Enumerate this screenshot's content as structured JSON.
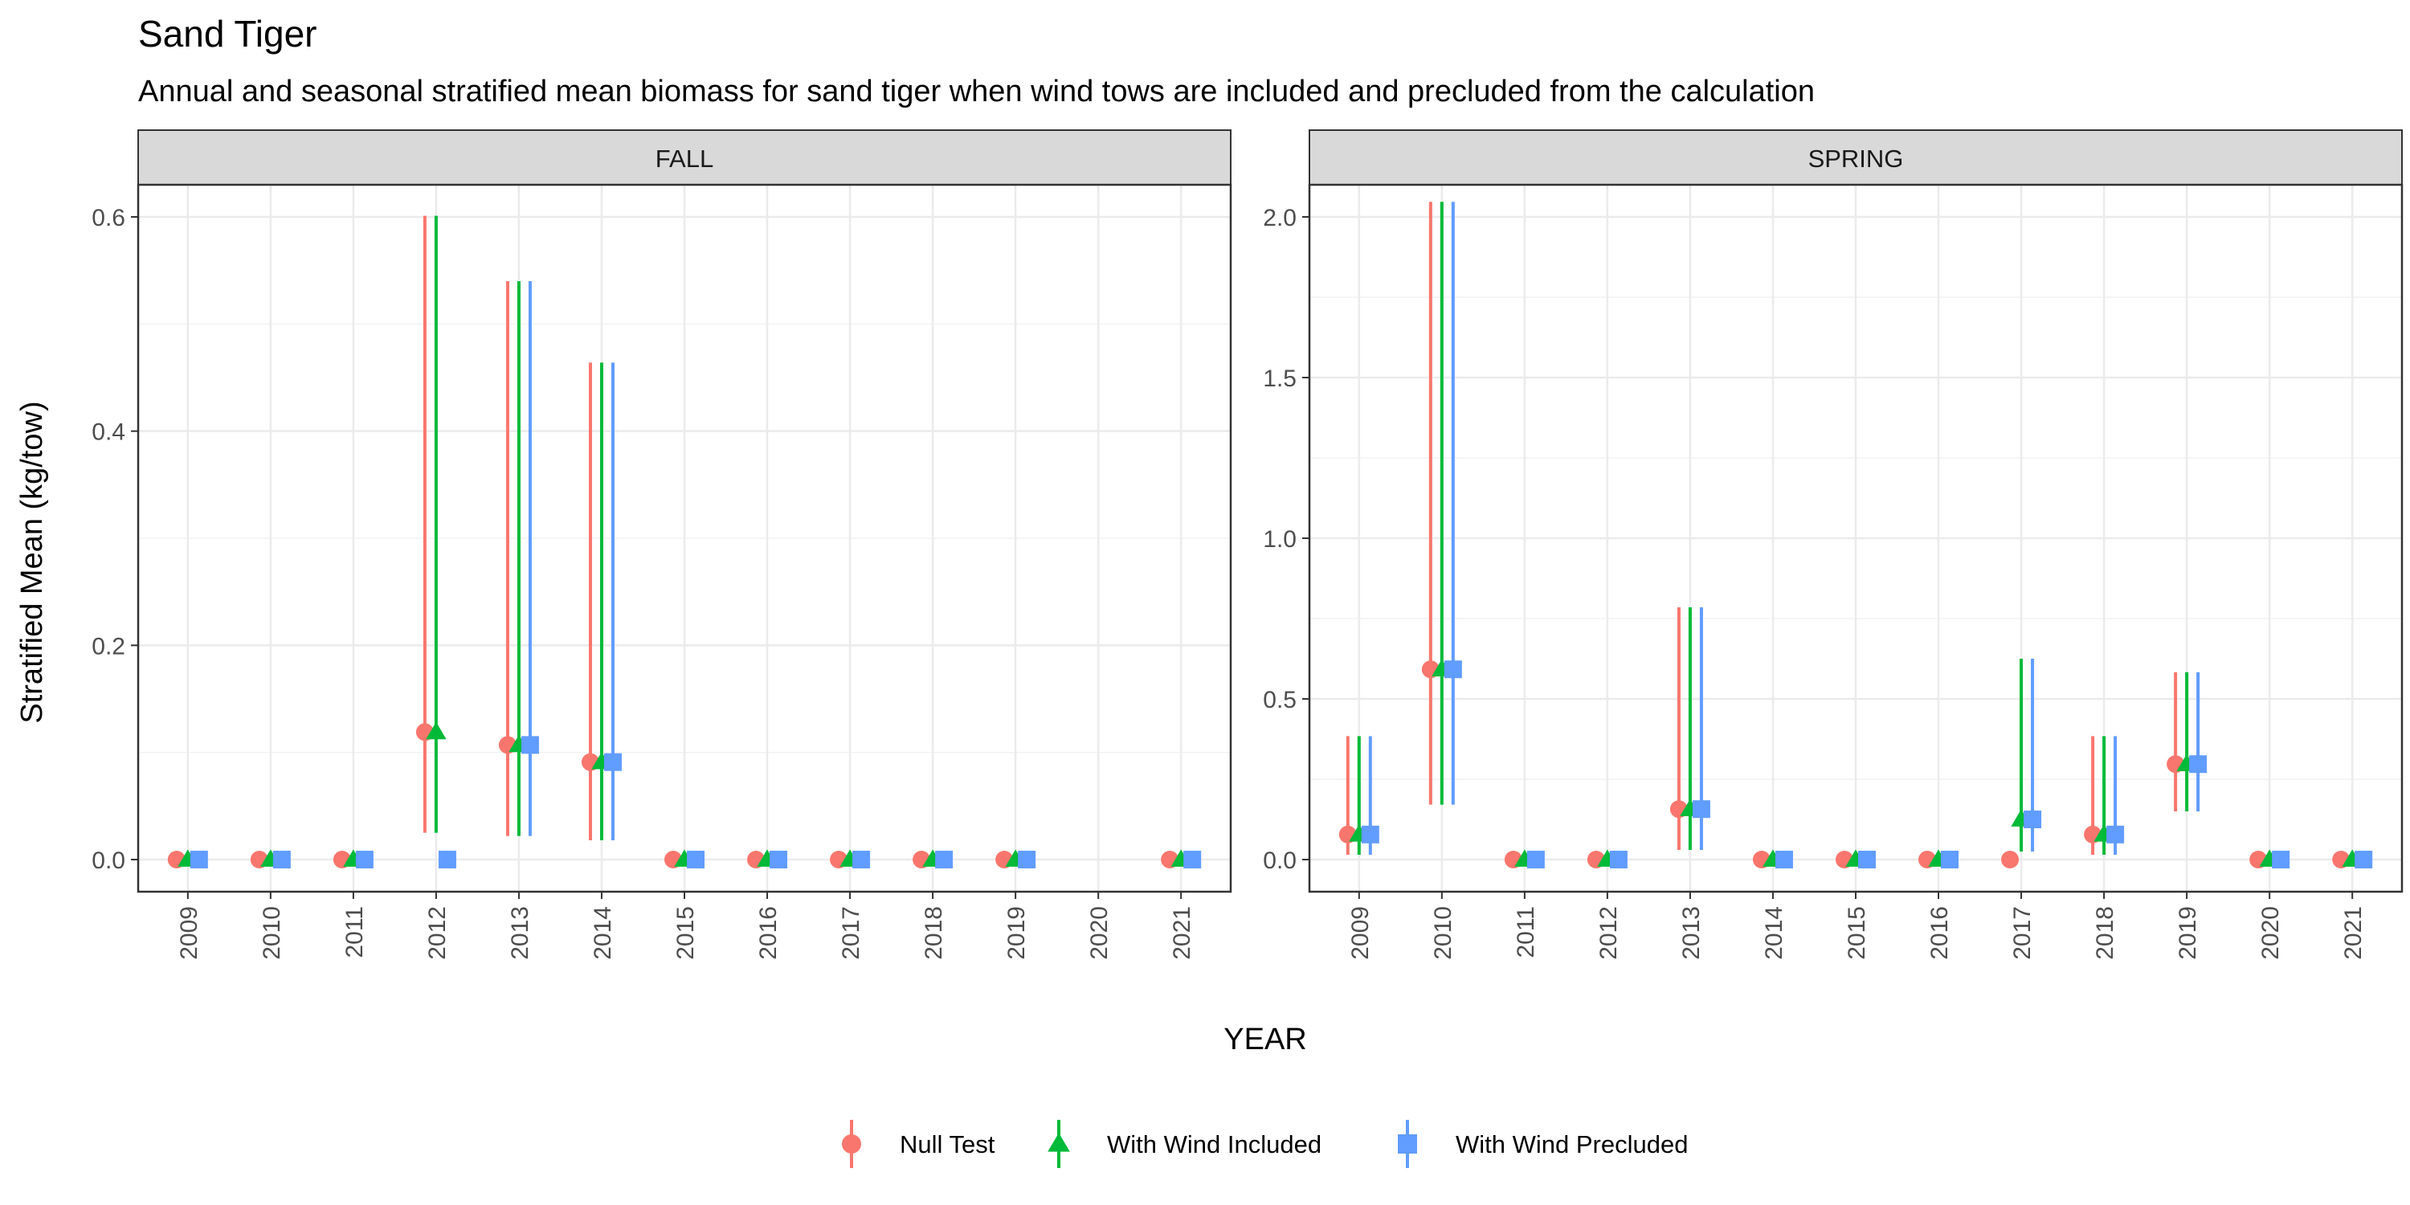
{
  "chart_data": {
    "type": "scatter",
    "title": "Sand Tiger",
    "subtitle": "Annual and seasonal stratified mean biomass for sand tiger when wind tows are included and precluded from the calculation",
    "xlabel": "YEAR",
    "ylabel": "Stratified Mean (kg/tow)",
    "grid": true,
    "legend_position": "bottom",
    "years": [
      2009,
      2010,
      2011,
      2012,
      2013,
      2014,
      2015,
      2016,
      2017,
      2018,
      2019,
      2020,
      2021
    ],
    "legend": [
      {
        "name": "Null Test",
        "color": "#F8766D",
        "shape": "circle"
      },
      {
        "name": "With Wind Included",
        "color": "#00BA38",
        "shape": "triangle"
      },
      {
        "name": "With Wind Precluded",
        "color": "#619CFF",
        "shape": "square"
      }
    ],
    "panels": [
      {
        "label": "FALL",
        "ylim": [
          -0.03,
          0.63
        ],
        "yticks": [
          0.0,
          0.2,
          0.4,
          0.6
        ],
        "ytick_labels": [
          "0.0",
          "0.2",
          "0.4",
          "0.6"
        ],
        "series": [
          {
            "name": "Null Test",
            "points": [
              {
                "year": 2009,
                "mean": 0.0
              },
              {
                "year": 2010,
                "mean": 0.0
              },
              {
                "year": 2011,
                "mean": 0.0
              },
              {
                "year": 2012,
                "mean": 0.119,
                "low": 0.025,
                "high": 0.601
              },
              {
                "year": 2013,
                "mean": 0.107,
                "low": 0.022,
                "high": 0.54
              },
              {
                "year": 2014,
                "mean": 0.091,
                "low": 0.018,
                "high": 0.464
              },
              {
                "year": 2015,
                "mean": 0.0
              },
              {
                "year": 2016,
                "mean": 0.0
              },
              {
                "year": 2017,
                "mean": 0.0
              },
              {
                "year": 2018,
                "mean": 0.0
              },
              {
                "year": 2019,
                "mean": 0.0
              },
              {
                "year": 2021,
                "mean": 0.0
              }
            ]
          },
          {
            "name": "With Wind Included",
            "points": [
              {
                "year": 2009,
                "mean": 0.0
              },
              {
                "year": 2010,
                "mean": 0.0
              },
              {
                "year": 2011,
                "mean": 0.0
              },
              {
                "year": 2012,
                "mean": 0.119,
                "low": 0.025,
                "high": 0.601
              },
              {
                "year": 2013,
                "mean": 0.107,
                "low": 0.022,
                "high": 0.54
              },
              {
                "year": 2014,
                "mean": 0.091,
                "low": 0.018,
                "high": 0.464
              },
              {
                "year": 2015,
                "mean": 0.0
              },
              {
                "year": 2016,
                "mean": 0.0
              },
              {
                "year": 2017,
                "mean": 0.0
              },
              {
                "year": 2018,
                "mean": 0.0
              },
              {
                "year": 2019,
                "mean": 0.0
              },
              {
                "year": 2021,
                "mean": 0.0
              }
            ]
          },
          {
            "name": "With Wind Precluded",
            "points": [
              {
                "year": 2009,
                "mean": 0.0
              },
              {
                "year": 2010,
                "mean": 0.0
              },
              {
                "year": 2011,
                "mean": 0.0
              },
              {
                "year": 2012,
                "mean": 0.0
              },
              {
                "year": 2013,
                "mean": 0.107,
                "low": 0.022,
                "high": 0.54
              },
              {
                "year": 2014,
                "mean": 0.091,
                "low": 0.018,
                "high": 0.464
              },
              {
                "year": 2015,
                "mean": 0.0
              },
              {
                "year": 2016,
                "mean": 0.0
              },
              {
                "year": 2017,
                "mean": 0.0
              },
              {
                "year": 2018,
                "mean": 0.0
              },
              {
                "year": 2019,
                "mean": 0.0
              },
              {
                "year": 2021,
                "mean": 0.0
              }
            ]
          }
        ]
      },
      {
        "label": "SPRING",
        "ylim": [
          -0.1,
          2.1
        ],
        "yticks": [
          0.0,
          0.5,
          1.0,
          1.5,
          2.0
        ],
        "ytick_labels": [
          "0.0",
          "0.5",
          "1.0",
          "1.5",
          "2.0"
        ],
        "series": [
          {
            "name": "Null Test",
            "points": [
              {
                "year": 2009,
                "mean": 0.078,
                "low": 0.015,
                "high": 0.384
              },
              {
                "year": 2010,
                "mean": 0.592,
                "low": 0.171,
                "high": 2.047
              },
              {
                "year": 2011,
                "mean": 0.0
              },
              {
                "year": 2012,
                "mean": 0.0
              },
              {
                "year": 2013,
                "mean": 0.157,
                "low": 0.03,
                "high": 0.785
              },
              {
                "year": 2014,
                "mean": 0.0
              },
              {
                "year": 2015,
                "mean": 0.0
              },
              {
                "year": 2016,
                "mean": 0.0
              },
              {
                "year": 2017,
                "mean": 0.0
              },
              {
                "year": 2018,
                "mean": 0.078,
                "low": 0.015,
                "high": 0.384
              },
              {
                "year": 2019,
                "mean": 0.297,
                "low": 0.15,
                "high": 0.583
              },
              {
                "year": 2020,
                "mean": 0.0
              },
              {
                "year": 2021,
                "mean": 0.0
              }
            ]
          },
          {
            "name": "With Wind Included",
            "points": [
              {
                "year": 2009,
                "mean": 0.078,
                "low": 0.015,
                "high": 0.384
              },
              {
                "year": 2010,
                "mean": 0.592,
                "low": 0.171,
                "high": 2.047
              },
              {
                "year": 2011,
                "mean": 0.0
              },
              {
                "year": 2012,
                "mean": 0.0
              },
              {
                "year": 2013,
                "mean": 0.157,
                "low": 0.03,
                "high": 0.785
              },
              {
                "year": 2014,
                "mean": 0.0
              },
              {
                "year": 2015,
                "mean": 0.0
              },
              {
                "year": 2016,
                "mean": 0.0
              },
              {
                "year": 2017,
                "mean": 0.125,
                "low": 0.025,
                "high": 0.625
              },
              {
                "year": 2018,
                "mean": 0.078,
                "low": 0.015,
                "high": 0.384
              },
              {
                "year": 2019,
                "mean": 0.297,
                "low": 0.15,
                "high": 0.583
              },
              {
                "year": 2020,
                "mean": 0.0
              },
              {
                "year": 2021,
                "mean": 0.0
              }
            ]
          },
          {
            "name": "With Wind Precluded",
            "points": [
              {
                "year": 2009,
                "mean": 0.078,
                "low": 0.015,
                "high": 0.384
              },
              {
                "year": 2010,
                "mean": 0.592,
                "low": 0.171,
                "high": 2.047
              },
              {
                "year": 2011,
                "mean": 0.0
              },
              {
                "year": 2012,
                "mean": 0.0
              },
              {
                "year": 2013,
                "mean": 0.157,
                "low": 0.03,
                "high": 0.785
              },
              {
                "year": 2014,
                "mean": 0.0
              },
              {
                "year": 2015,
                "mean": 0.0
              },
              {
                "year": 2016,
                "mean": 0.0
              },
              {
                "year": 2017,
                "mean": 0.125,
                "low": 0.025,
                "high": 0.625
              },
              {
                "year": 2018,
                "mean": 0.078,
                "low": 0.015,
                "high": 0.384
              },
              {
                "year": 2019,
                "mean": 0.297,
                "low": 0.15,
                "high": 0.583
              },
              {
                "year": 2020,
                "mean": 0.0
              },
              {
                "year": 2021,
                "mean": 0.0
              }
            ]
          }
        ]
      }
    ]
  }
}
